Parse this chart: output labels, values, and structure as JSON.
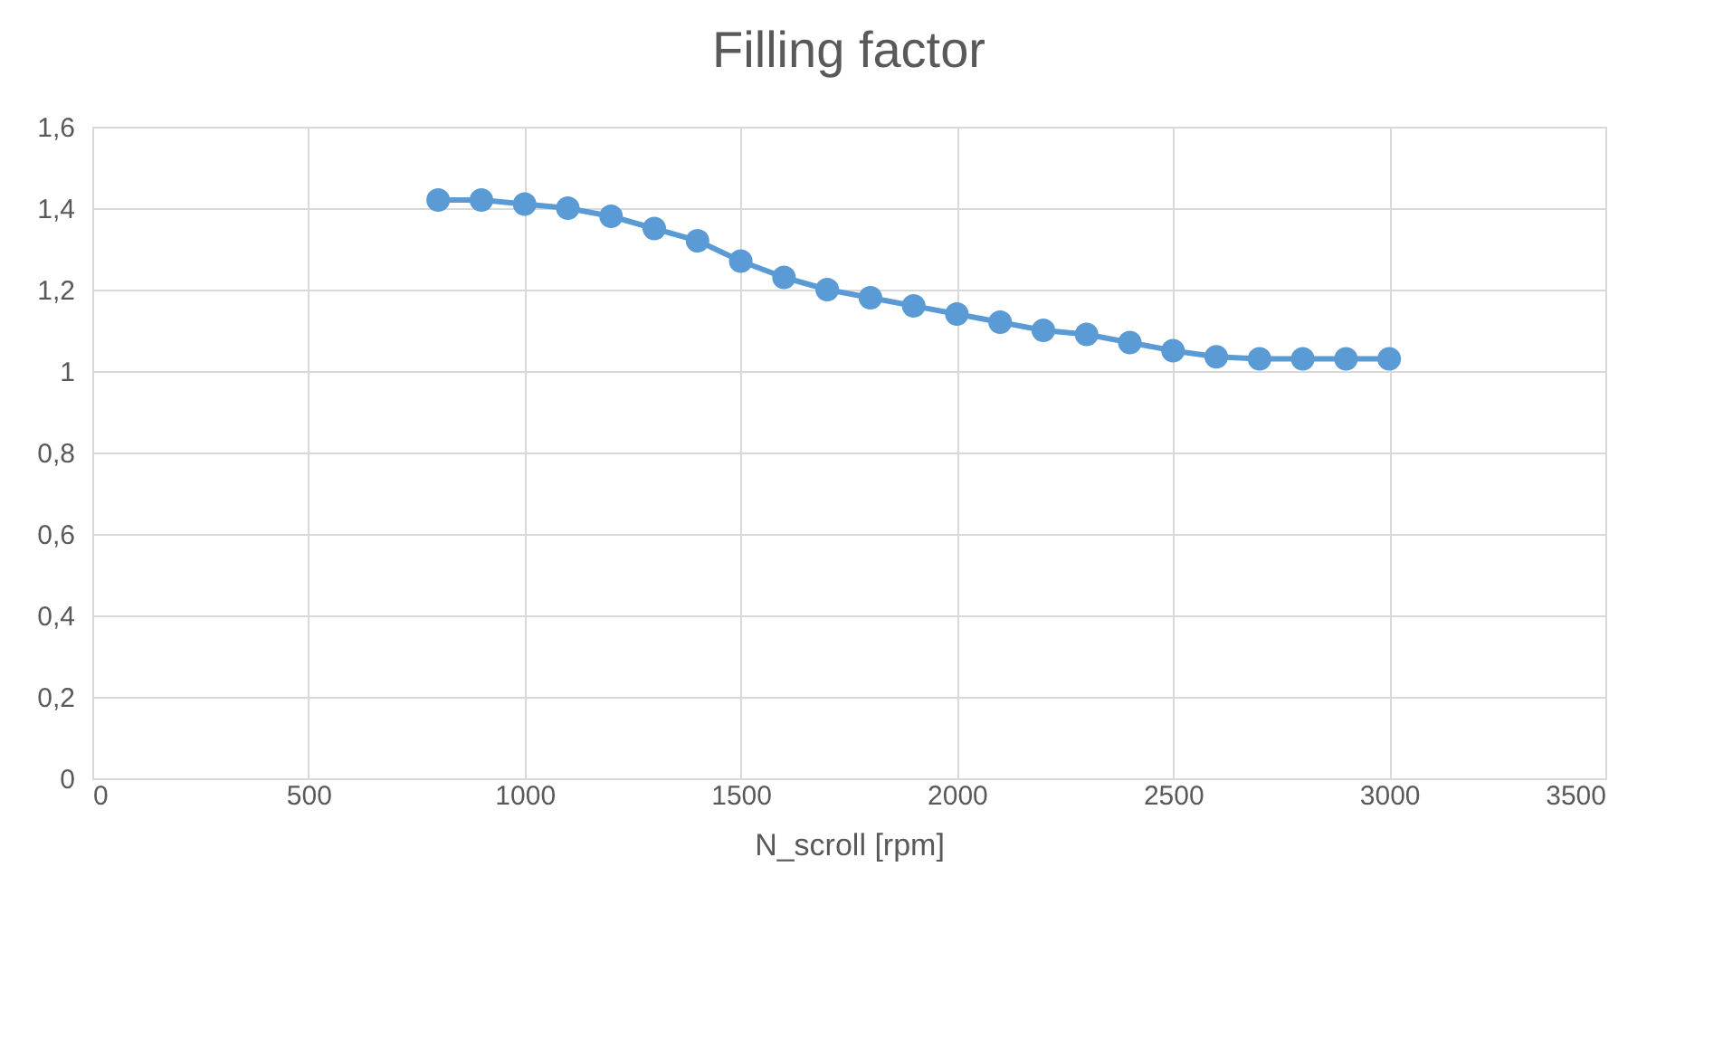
{
  "chart_data": {
    "type": "line",
    "title": "Filling factor",
    "xlabel": "N_scroll [rpm]",
    "x": [
      800,
      900,
      1000,
      1100,
      1200,
      1300,
      1400,
      1500,
      1600,
      1700,
      1800,
      1900,
      2000,
      2100,
      2200,
      2300,
      2400,
      2500,
      2600,
      2700,
      2800,
      2900,
      3000
    ],
    "series": [
      {
        "color": "#5b9bd5",
        "values": [
          1.42,
          1.42,
          1.41,
          1.4,
          1.38,
          1.35,
          1.32,
          1.27,
          1.23,
          1.2,
          1.18,
          1.16,
          1.14,
          1.12,
          1.1,
          1.09,
          1.07,
          1.05,
          1.035,
          1.03,
          1.03,
          1.03,
          1.03
        ]
      }
    ],
    "xlim": [
      0,
      3500
    ],
    "xticks": [
      0,
      500,
      1000,
      1500,
      2000,
      2500,
      3000,
      3500
    ],
    "ylim": [
      0,
      1.6
    ],
    "yticks": [
      0,
      {
        "value": 0.2,
        "label": "0,2"
      },
      {
        "value": 0.4,
        "label": "0,4"
      },
      {
        "value": 0.6,
        "label": "0,6"
      },
      {
        "value": 0.8,
        "label": "0,8"
      },
      1,
      {
        "value": 1.2,
        "label": "1,2"
      },
      {
        "value": 1.4,
        "label": "1,4"
      },
      {
        "value": 1.6,
        "label": "1,6"
      }
    ],
    "grid": true,
    "marker": "circle",
    "line_style": "solid"
  }
}
